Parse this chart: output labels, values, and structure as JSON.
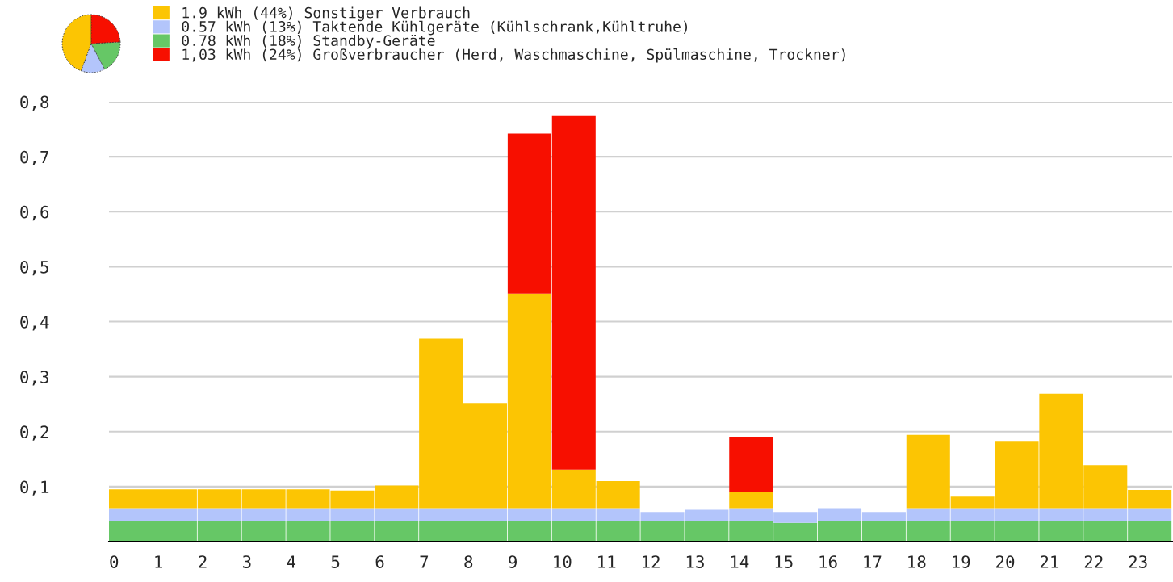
{
  "chart_data": [
    {
      "type": "pie",
      "categories": [
        "1.9 kWh (44%) Sonstiger Verbrauch",
        "0.57 kWh (13%) Taktende Kühlgeräte (Kühlschrank,Kühltruhe)",
        "0.78 kWh (18%) Standby-Geräte",
        "1,03 kWh (24%) Großverbraucher (Herd, Waschmaschine, Spülmaschine, Trockner)"
      ],
      "values": [
        1.9,
        0.57,
        0.78,
        1.03
      ],
      "colors": [
        "#fcc503",
        "#b3c5fb",
        "#66c766",
        "#f70f00"
      ],
      "legend": "right"
    },
    {
      "type": "bar",
      "stacked": true,
      "categories": [
        "0",
        "1",
        "2",
        "3",
        "4",
        "5",
        "6",
        "7",
        "8",
        "9",
        "10",
        "11",
        "12",
        "13",
        "14",
        "15",
        "16",
        "17",
        "18",
        "19",
        "20",
        "21",
        "22",
        "23"
      ],
      "series": [
        {
          "color": "#66c766",
          "values": [
            0.037,
            0.037,
            0.037,
            0.037,
            0.037,
            0.037,
            0.037,
            0.037,
            0.037,
            0.037,
            0.037,
            0.037,
            0.037,
            0.037,
            0.037,
            0.034,
            0.037,
            0.037,
            0.037,
            0.037,
            0.037,
            0.037,
            0.037,
            0.037
          ]
        },
        {
          "color": "#b3c5fb",
          "values": [
            0.024,
            0.024,
            0.024,
            0.024,
            0.024,
            0.024,
            0.024,
            0.024,
            0.024,
            0.024,
            0.024,
            0.024,
            0.017,
            0.021,
            0.024,
            0.02,
            0.024,
            0.017,
            0.024,
            0.024,
            0.024,
            0.024,
            0.024,
            0.024
          ]
        },
        {
          "color": "#fcc503",
          "values": [
            0.034,
            0.034,
            0.034,
            0.034,
            0.034,
            0.032,
            0.041,
            0.308,
            0.191,
            0.39,
            0.07,
            0.049,
            0,
            0,
            0.03,
            0,
            0,
            0,
            0.133,
            0.021,
            0.122,
            0.208,
            0.078,
            0.033
          ]
        },
        {
          "color": "#f70f00",
          "values": [
            0,
            0,
            0,
            0,
            0,
            0,
            0,
            0,
            0,
            0.291,
            0.643,
            0,
            0,
            0,
            0.1,
            0,
            0,
            0,
            0,
            0,
            0,
            0,
            0,
            0
          ]
        }
      ],
      "ylim": [
        0,
        0.8
      ],
      "yticks": [
        {
          "value": 0.1,
          "label": "0,1"
        },
        {
          "value": 0.2,
          "label": "0,2"
        },
        {
          "value": 0.3,
          "label": "0,3"
        },
        {
          "value": 0.4,
          "label": "0,4"
        },
        {
          "value": 0.5,
          "label": "0,5"
        },
        {
          "value": 0.6,
          "label": "0,6"
        },
        {
          "value": 0.7,
          "label": "0,7"
        },
        {
          "value": 0.8,
          "label": "0,8"
        }
      ],
      "grid": "y"
    }
  ]
}
